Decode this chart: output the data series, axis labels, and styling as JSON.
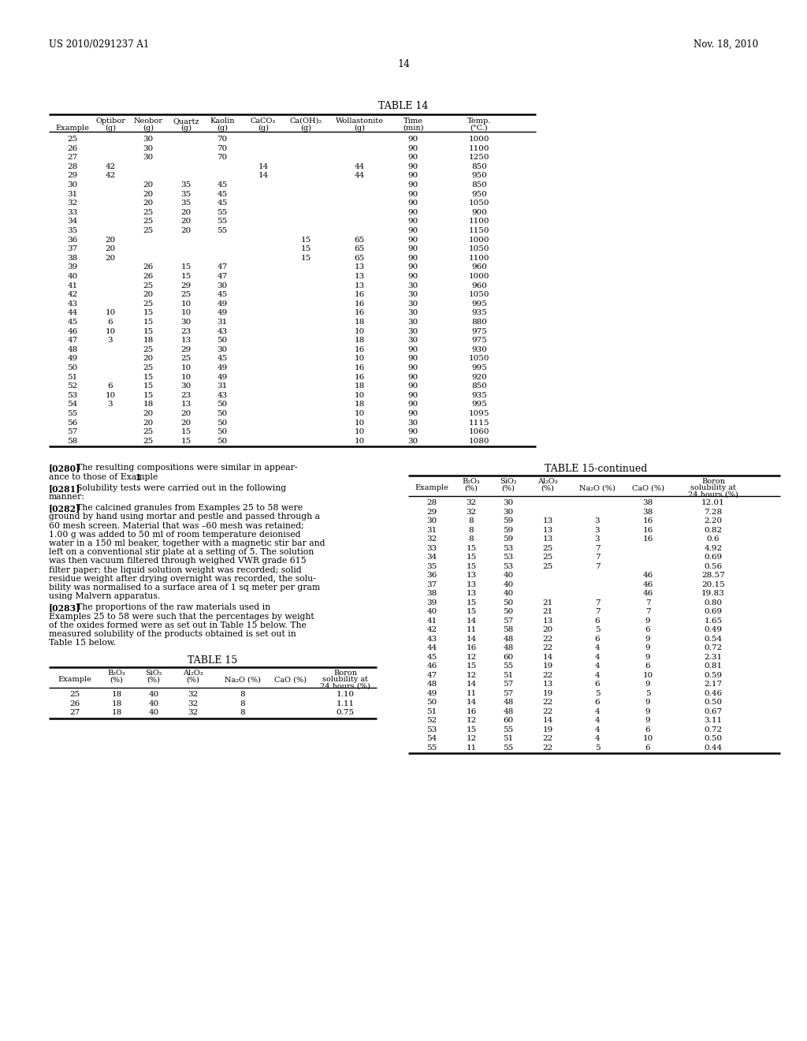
{
  "header_left": "US 2010/0291237 A1",
  "header_right": "Nov. 18, 2010",
  "page_number": "14",
  "table14_title": "TABLE 14",
  "table14_data": [
    [
      "25",
      "",
      "30",
      "",
      "70",
      "",
      "",
      "",
      "90",
      "1000"
    ],
    [
      "26",
      "",
      "30",
      "",
      "70",
      "",
      "",
      "",
      "90",
      "1100"
    ],
    [
      "27",
      "",
      "30",
      "",
      "70",
      "",
      "",
      "",
      "90",
      "1250"
    ],
    [
      "28",
      "42",
      "",
      "",
      "",
      "14",
      "",
      "44",
      "90",
      "850"
    ],
    [
      "29",
      "42",
      "",
      "",
      "",
      "14",
      "",
      "44",
      "90",
      "950"
    ],
    [
      "30",
      "",
      "20",
      "35",
      "45",
      "",
      "",
      "",
      "90",
      "850"
    ],
    [
      "31",
      "",
      "20",
      "35",
      "45",
      "",
      "",
      "",
      "90",
      "950"
    ],
    [
      "32",
      "",
      "20",
      "35",
      "45",
      "",
      "",
      "",
      "90",
      "1050"
    ],
    [
      "33",
      "",
      "25",
      "20",
      "55",
      "",
      "",
      "",
      "90",
      "900"
    ],
    [
      "34",
      "",
      "25",
      "20",
      "55",
      "",
      "",
      "",
      "90",
      "1100"
    ],
    [
      "35",
      "",
      "25",
      "20",
      "55",
      "",
      "",
      "",
      "90",
      "1150"
    ],
    [
      "36",
      "20",
      "",
      "",
      "",
      "",
      "15",
      "65",
      "90",
      "1000"
    ],
    [
      "37",
      "20",
      "",
      "",
      "",
      "",
      "15",
      "65",
      "90",
      "1050"
    ],
    [
      "38",
      "20",
      "",
      "",
      "",
      "",
      "15",
      "65",
      "90",
      "1100"
    ],
    [
      "39",
      "",
      "26",
      "15",
      "47",
      "",
      "",
      "13",
      "90",
      "960"
    ],
    [
      "40",
      "",
      "26",
      "15",
      "47",
      "",
      "",
      "13",
      "90",
      "1000"
    ],
    [
      "41",
      "",
      "25",
      "29",
      "30",
      "",
      "",
      "13",
      "30",
      "960"
    ],
    [
      "42",
      "",
      "20",
      "25",
      "45",
      "",
      "",
      "16",
      "30",
      "1050"
    ],
    [
      "43",
      "",
      "25",
      "10",
      "49",
      "",
      "",
      "16",
      "30",
      "995"
    ],
    [
      "44",
      "10",
      "15",
      "10",
      "49",
      "",
      "",
      "16",
      "30",
      "935"
    ],
    [
      "45",
      "6",
      "15",
      "30",
      "31",
      "",
      "",
      "18",
      "30",
      "880"
    ],
    [
      "46",
      "10",
      "15",
      "23",
      "43",
      "",
      "",
      "10",
      "30",
      "975"
    ],
    [
      "47",
      "3",
      "18",
      "13",
      "50",
      "",
      "",
      "18",
      "30",
      "975"
    ],
    [
      "48",
      "",
      "25",
      "29",
      "30",
      "",
      "",
      "16",
      "90",
      "930"
    ],
    [
      "49",
      "",
      "20",
      "25",
      "45",
      "",
      "",
      "10",
      "90",
      "1050"
    ],
    [
      "50",
      "",
      "25",
      "10",
      "49",
      "",
      "",
      "16",
      "90",
      "995"
    ],
    [
      "51",
      "",
      "15",
      "10",
      "49",
      "",
      "",
      "16",
      "90",
      "920"
    ],
    [
      "52",
      "6",
      "15",
      "30",
      "31",
      "",
      "",
      "18",
      "90",
      "850"
    ],
    [
      "53",
      "10",
      "15",
      "23",
      "43",
      "",
      "",
      "10",
      "90",
      "935"
    ],
    [
      "54",
      "3",
      "18",
      "13",
      "50",
      "",
      "",
      "18",
      "90",
      "995"
    ],
    [
      "55",
      "",
      "20",
      "20",
      "50",
      "",
      "",
      "10",
      "90",
      "1095"
    ],
    [
      "56",
      "",
      "20",
      "20",
      "50",
      "",
      "",
      "10",
      "30",
      "1115"
    ],
    [
      "57",
      "",
      "25",
      "15",
      "50",
      "",
      "",
      "10",
      "90",
      "1060"
    ],
    [
      "58",
      "",
      "25",
      "15",
      "50",
      "",
      "",
      "10",
      "30",
      "1080"
    ]
  ],
  "para0280_line1": "The resulting compositions were similar in appear-",
  "para0280_line2": "ance to those of Example ",
  "para0280_bold": "1",
  "para0280_end": ".",
  "para0281_line1": "Solubility tests were carried out in the following",
  "para0281_line2": "manner:",
  "para0282_lines": [
    "The calcined granules from Examples 25 to 58 were",
    "ground by hand using mortar and pestle and passed through a",
    "60 mesh screen. Material that was –60 mesh was retained;",
    "1.00 g was added to 50 ml of room temperature deionised",
    "water in a 150 ml beaker, together with a magnetic stir bar and",
    "left on a conventional stir plate at a setting of 5. The solution",
    "was then vacuum filtered through weighed VWR grade 615",
    "filter paper; the liquid solution weight was recorded; solid",
    "residue weight after drying overnight was recorded, the solu-",
    "bility was normalised to a surface area of 1 sq meter per gram",
    "using Malvern apparatus."
  ],
  "para0283_lines": [
    "The proportions of the raw materials used in",
    "Examples 25 to 58 were such that the percentages by weight",
    "of the oxides formed were as set out in Table 15 below. The",
    "measured solubility of the products obtained is set out in",
    "Table 15 below."
  ],
  "table15_title": "TABLE 15",
  "table15_cont_title": "TABLE 15-continued",
  "table15_data": [
    [
      "25",
      "18",
      "40",
      "32",
      "8",
      "",
      "1.10"
    ],
    [
      "26",
      "18",
      "40",
      "32",
      "8",
      "",
      "1.11"
    ],
    [
      "27",
      "18",
      "40",
      "32",
      "8",
      "",
      "0.75"
    ]
  ],
  "table15cont_data": [
    [
      "28",
      "32",
      "30",
      "",
      "",
      "38",
      "12.01"
    ],
    [
      "29",
      "32",
      "30",
      "",
      "",
      "38",
      "7.28"
    ],
    [
      "30",
      "8",
      "59",
      "13",
      "3",
      "16",
      "2.20"
    ],
    [
      "31",
      "8",
      "59",
      "13",
      "3",
      "16",
      "0.82"
    ],
    [
      "32",
      "8",
      "59",
      "13",
      "3",
      "16",
      "0.6"
    ],
    [
      "33",
      "15",
      "53",
      "25",
      "7",
      "",
      "4.92"
    ],
    [
      "34",
      "15",
      "53",
      "25",
      "7",
      "",
      "0.69"
    ],
    [
      "35",
      "15",
      "53",
      "25",
      "7",
      "",
      "0.56"
    ],
    [
      "36",
      "13",
      "40",
      "",
      "",
      "46",
      "28.57"
    ],
    [
      "37",
      "13",
      "40",
      "",
      "",
      "46",
      "20.15"
    ],
    [
      "38",
      "13",
      "40",
      "",
      "",
      "46",
      "19.83"
    ],
    [
      "39",
      "15",
      "50",
      "21",
      "7",
      "7",
      "0.80"
    ],
    [
      "40",
      "15",
      "50",
      "21",
      "7",
      "7",
      "0.69"
    ],
    [
      "41",
      "14",
      "57",
      "13",
      "6",
      "9",
      "1.65"
    ],
    [
      "42",
      "11",
      "58",
      "20",
      "5",
      "6",
      "0.49"
    ],
    [
      "43",
      "14",
      "48",
      "22",
      "6",
      "9",
      "0.54"
    ],
    [
      "44",
      "16",
      "48",
      "22",
      "4",
      "9",
      "0.72"
    ],
    [
      "45",
      "12",
      "60",
      "14",
      "4",
      "9",
      "2.31"
    ],
    [
      "46",
      "15",
      "55",
      "19",
      "4",
      "6",
      "0.81"
    ],
    [
      "47",
      "12",
      "51",
      "22",
      "4",
      "10",
      "0.59"
    ],
    [
      "48",
      "14",
      "57",
      "13",
      "6",
      "9",
      "2.17"
    ],
    [
      "49",
      "11",
      "57",
      "19",
      "5",
      "5",
      "0.46"
    ],
    [
      "50",
      "14",
      "48",
      "22",
      "6",
      "9",
      "0.50"
    ],
    [
      "51",
      "16",
      "48",
      "22",
      "4",
      "9",
      "0.67"
    ],
    [
      "52",
      "12",
      "60",
      "14",
      "4",
      "9",
      "3.11"
    ],
    [
      "53",
      "15",
      "55",
      "19",
      "4",
      "6",
      "0.72"
    ],
    [
      "54",
      "12",
      "51",
      "22",
      "4",
      "10",
      "0.50"
    ],
    [
      "55",
      "11",
      "55",
      "22",
      "5",
      "6",
      "0.44"
    ]
  ]
}
